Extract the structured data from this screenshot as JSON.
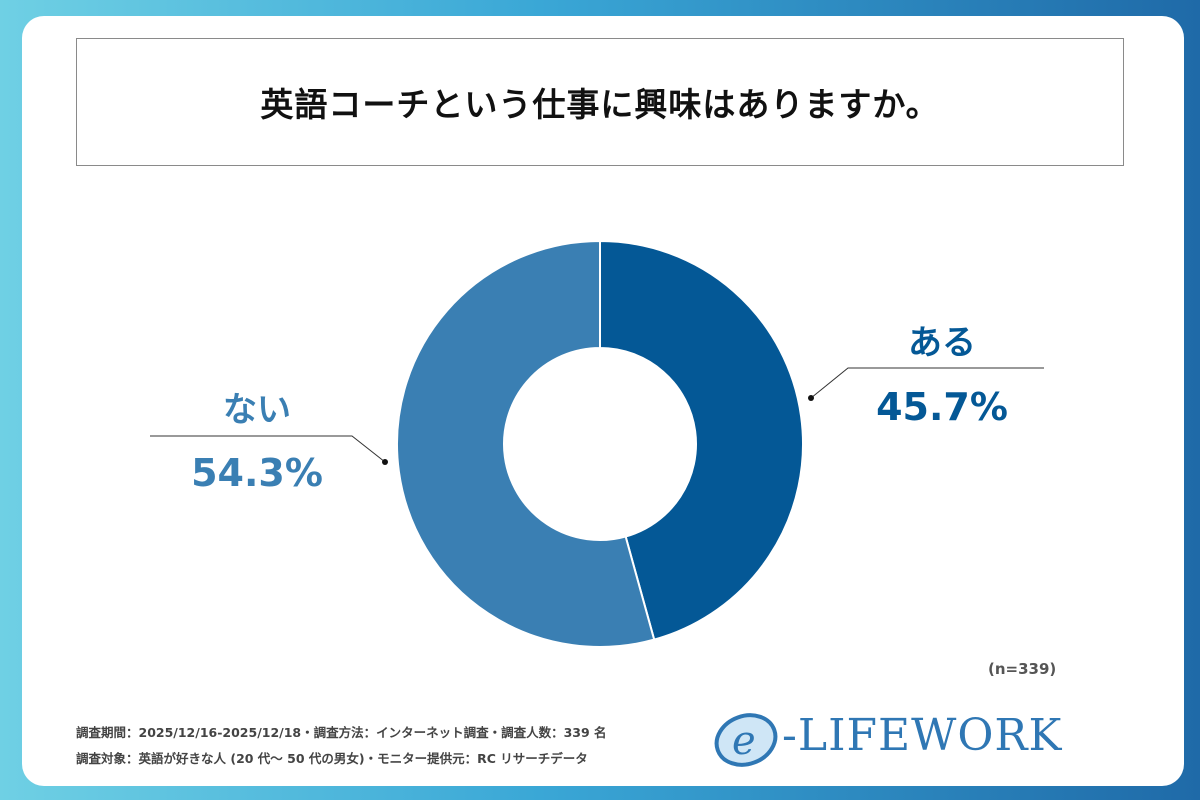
{
  "title": "英語コーチという仕事に興味はありますか。",
  "chart_data": {
    "type": "pie",
    "style": "donut",
    "categories": [
      "ある",
      "ない"
    ],
    "values": [
      45.7,
      54.3
    ],
    "value_labels": [
      "45.7%",
      "54.3%"
    ],
    "colors": [
      "#045896",
      "#3a7fb3"
    ]
  },
  "sample_size": "(n=339)",
  "footnotes": [
    "調査期間：2025/12/16-2025/12/18・調査方法：インターネット調査・調査人数：339 名",
    "調査対象：英語が好きな人 (20 代～ 50 代の男女)・モニター提供元：RC リサーチデータ"
  ],
  "logo": {
    "text": "e-LIFEWORK",
    "icon": "e-circle-logo-icon"
  }
}
